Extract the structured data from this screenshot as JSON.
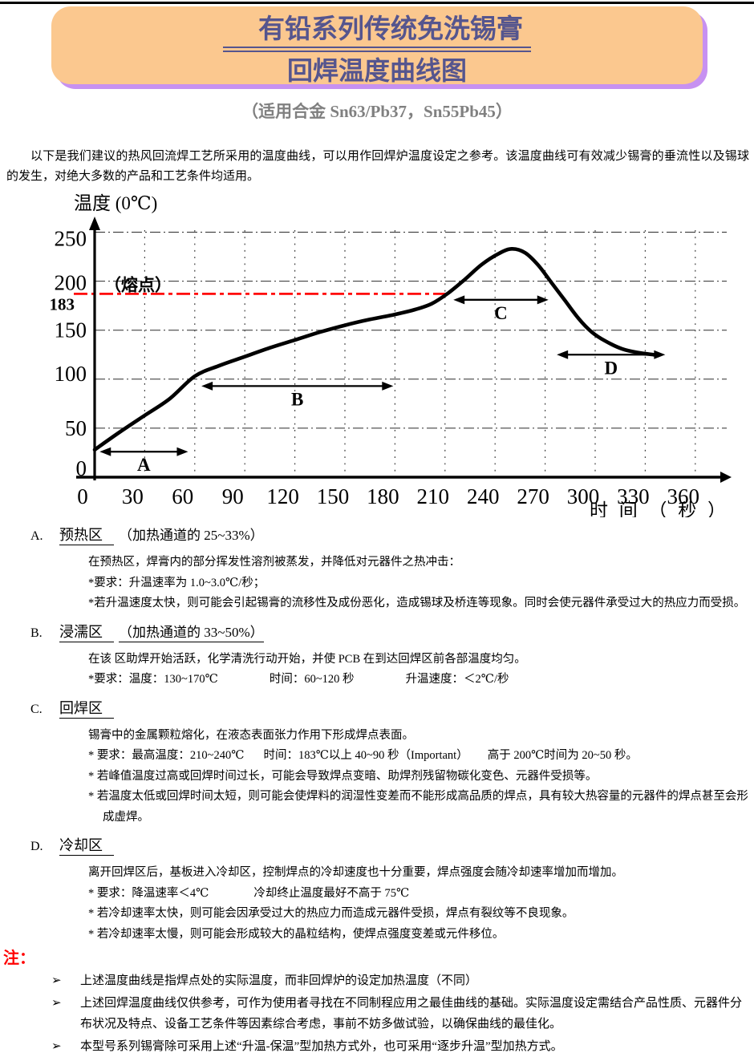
{
  "page": {
    "title": {
      "line1_bold": "有铅",
      "line1_rest": "系列传统免洗锡膏",
      "line2": "回焊温度曲线图"
    },
    "subtitle": "（适用合金 Sn63/Pb37，Sn55Pb45）",
    "intro": "以下是我们建议的热风回流焊工艺所采用的温度曲线，可以用作回焊炉温度设定之参考。该温度曲线可有效减少锡膏的垂流性以及锡球的发生，对绝大多数的产品和工艺条件均适用。",
    "colors": {
      "title_box_bg": "#FBC88F",
      "title_box_shadow": "#C791F1",
      "title_text": "#55558E",
      "subtitle_text": "#808080",
      "accent_red": "#FF0000"
    }
  },
  "chart_data": {
    "type": "line",
    "title": "",
    "ylabel": "温度 (0℃)",
    "xlabel": "时 间 （ 秒 ）",
    "x_ticks": [
      0,
      30,
      60,
      90,
      120,
      150,
      180,
      210,
      240,
      270,
      300,
      330,
      360
    ],
    "y_ticks": [
      0,
      50,
      100,
      150,
      200,
      250
    ],
    "xlim": [
      0,
      380
    ],
    "ylim": [
      0,
      275
    ],
    "grid": true,
    "legend": "none",
    "melting_point": {
      "label": "（熔点）",
      "value": 183,
      "value_label": "183",
      "color": "#FF0000"
    },
    "series": [
      {
        "name": "回焊温度曲线",
        "points": [
          [
            0,
            28
          ],
          [
            15,
            46
          ],
          [
            30,
            63
          ],
          [
            45,
            80
          ],
          [
            60,
            103
          ],
          [
            75,
            114
          ],
          [
            90,
            123
          ],
          [
            105,
            132
          ],
          [
            120,
            140
          ],
          [
            135,
            148
          ],
          [
            150,
            155
          ],
          [
            165,
            161
          ],
          [
            180,
            166
          ],
          [
            192,
            171
          ],
          [
            202,
            177
          ],
          [
            212,
            188
          ],
          [
            222,
            202
          ],
          [
            232,
            217
          ],
          [
            242,
            228
          ],
          [
            250,
            233
          ],
          [
            258,
            229
          ],
          [
            266,
            216
          ],
          [
            274,
            198
          ],
          [
            282,
            180
          ],
          [
            290,
            162
          ],
          [
            298,
            148
          ],
          [
            306,
            139
          ],
          [
            316,
            131
          ],
          [
            326,
            127
          ],
          [
            335,
            125
          ]
        ]
      }
    ],
    "regions": [
      {
        "label": "A",
        "from": 3,
        "to": 56,
        "temp": 26
      },
      {
        "label": "B",
        "from": 64,
        "to": 179,
        "temp": 93
      },
      {
        "label": "C",
        "from": 215,
        "to": 272,
        "temp": 181
      },
      {
        "label": "D",
        "from": 277,
        "to": 342,
        "temp": 125
      }
    ]
  },
  "sections": [
    {
      "letter": "A.",
      "title": "预热区",
      "suffix": "（加热通道的 25~33%）",
      "suffix_underlined": false,
      "lines": [
        {
          "text": "在预热区，焊膏内的部分挥发性溶剂被蒸发，并降低对元器件之热冲击："
        },
        {
          "text": "*要求：升温速率为 1.0~3.0℃/秒；"
        },
        {
          "text": "*若升温速度太快，则可能会引起锡膏的流移性及成份恶化，造成锡球及桥连等现象。同时会使元器件承受过大的热应力而受损。"
        }
      ]
    },
    {
      "letter": "B.",
      "title": "浸濡区",
      "suffix": "（加热通道的 33~50%）",
      "suffix_underlined": true,
      "lines": [
        {
          "text": "在该 区助焊开始活跃，化学清洗行动开始，并使 PCB 在到达回焊区前各部温度均匀。"
        },
        {
          "segments": [
            "*要求：温度：130~170℃",
            "时间：60~120 秒",
            "升温速度：＜2℃/秒"
          ]
        }
      ]
    },
    {
      "letter": "C.",
      "title": "回焊区",
      "suffix": "",
      "suffix_underlined": false,
      "lines": [
        {
          "text": "锡膏中的金属颗粒熔化，在液态表面张力作用下形成焊点表面。"
        },
        {
          "segments": [
            "* 要求：最高温度：210~240℃",
            "时间：183℃以上 40~90 秒（Important）",
            "高于 200℃时间为 20~50 秒。"
          ]
        },
        {
          "text": "* 若峰值温度过高或回焊时间过长，可能会导致焊点变暗、助焊剂残留物碳化变色、元器件受损等。"
        },
        {
          "text": "* 若温度太低或回焊时间太短，则可能会使焊料的润湿性变差而不能形成高品质的焊点，具有较大热容量的元器件的焊点甚至会形成虚焊。"
        }
      ]
    },
    {
      "letter": "D.",
      "title": "冷却区",
      "suffix": "",
      "suffix_underlined": false,
      "lines": [
        {
          "text": "离开回焊区后，基板进入冷却区，控制焊点的冷却速度也十分重要，焊点强度会随冷却速率增加而增加。"
        },
        {
          "segments": [
            "* 要求：降温速率＜4℃",
            "冷却终止温度最好不高于 75℃"
          ]
        },
        {
          "text": "* 若冷却速率太快，则可能会因承受过大的热应力而造成元器件受损，焊点有裂纹等不良现象。"
        },
        {
          "text": "* 若冷却速率太慢，则可能会形成较大的晶粒结构，使焊点强度变差或元件移位。"
        }
      ]
    }
  ],
  "notes": {
    "heading": "注：",
    "bullet": "➢",
    "items": [
      "上述温度曲线是指焊点处的实际温度，而非回焊炉的设定加热温度（不同）",
      "上述回焊温度曲线仅供参考，可作为使用者寻找在不同制程应用之最佳曲线的基础。实际温度设定需结合产品性质、元器件分布状况及特点、设备工艺条件等因素综合考虑，事前不妨多做试验，以确保曲线的最佳化。",
      "本型号系列锡膏除可采用上述“升温-保温”型加热方式外，也可采用“逐步升温”型加热方式。"
    ]
  }
}
